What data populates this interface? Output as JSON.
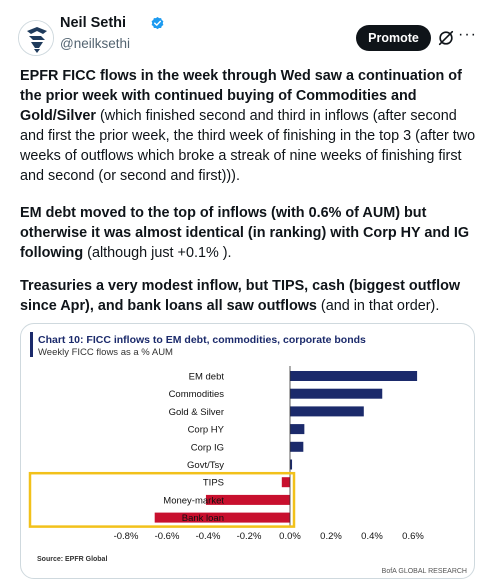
{
  "post": {
    "author_name": "Neil Sethi",
    "handle": "@neilksethi",
    "promote_label": "Promote",
    "more_label": "···",
    "paragraphs": [
      [
        {
          "text": "EPFR FICC flows in the week through Wed saw a continuation of the prior week with continued buying of Commodities and Gold/Silver",
          "bold": true
        },
        {
          "text": " (which finished second and third in inflows (after second and first the prior week, the third week of finishing in the top 3 (after two weeks of outflows which broke a streak of nine weeks of finishing first and second (or second and first))).",
          "bold": false
        }
      ],
      [
        {
          "text": "EM debt moved to the top of inflows (with 0.6% of AUM) but otherwise it was almost identical (in ranking) with Corp HY and IG following",
          "bold": true
        },
        {
          "text": " (although just +0.1% ).",
          "bold": false
        }
      ],
      [
        {
          "text": "Treasuries a very modest inflow, but TIPS, cash (biggest outflow since Apr), and bank loans all saw outflows",
          "bold": true
        },
        {
          "text": " (and in that order).",
          "bold": false
        }
      ]
    ]
  },
  "chart_data": {
    "type": "bar",
    "orientation": "horizontal",
    "title": "Chart 10: FICC inflows to EM debt, commodities, corporate bonds",
    "subtitle": "Weekly FICC flows as a % AUM",
    "categories": [
      "EM debt",
      "Commodities",
      "Gold & Silver",
      "Corp HY",
      "Corp IG",
      "Govt/Tsy",
      "TIPS",
      "Money-market",
      "Bank loan"
    ],
    "values": [
      0.62,
      0.45,
      0.36,
      0.07,
      0.065,
      0.01,
      -0.04,
      -0.41,
      -0.66
    ],
    "xlim": [
      -0.9,
      0.7
    ],
    "xticks": [
      "-0.8%",
      "-0.6%",
      "-0.4%",
      "-0.2%",
      "0.0%",
      "0.2%",
      "0.4%",
      "0.6%"
    ],
    "xtick_values": [
      -0.8,
      -0.6,
      -0.4,
      -0.2,
      0.0,
      0.2,
      0.4,
      0.6
    ],
    "positive_color": "#1b2a6b",
    "negative_color": "#c8102e",
    "highlight_color": "#f2c11a",
    "highlighted_categories": [
      "TIPS",
      "Money-market",
      "Bank loan"
    ],
    "source": "Source: EPFR Global",
    "credit": "BofA GLOBAL RESEARCH"
  },
  "colors": {
    "verified": "#1d9bf0",
    "title_accent": "#1b2a6b"
  }
}
